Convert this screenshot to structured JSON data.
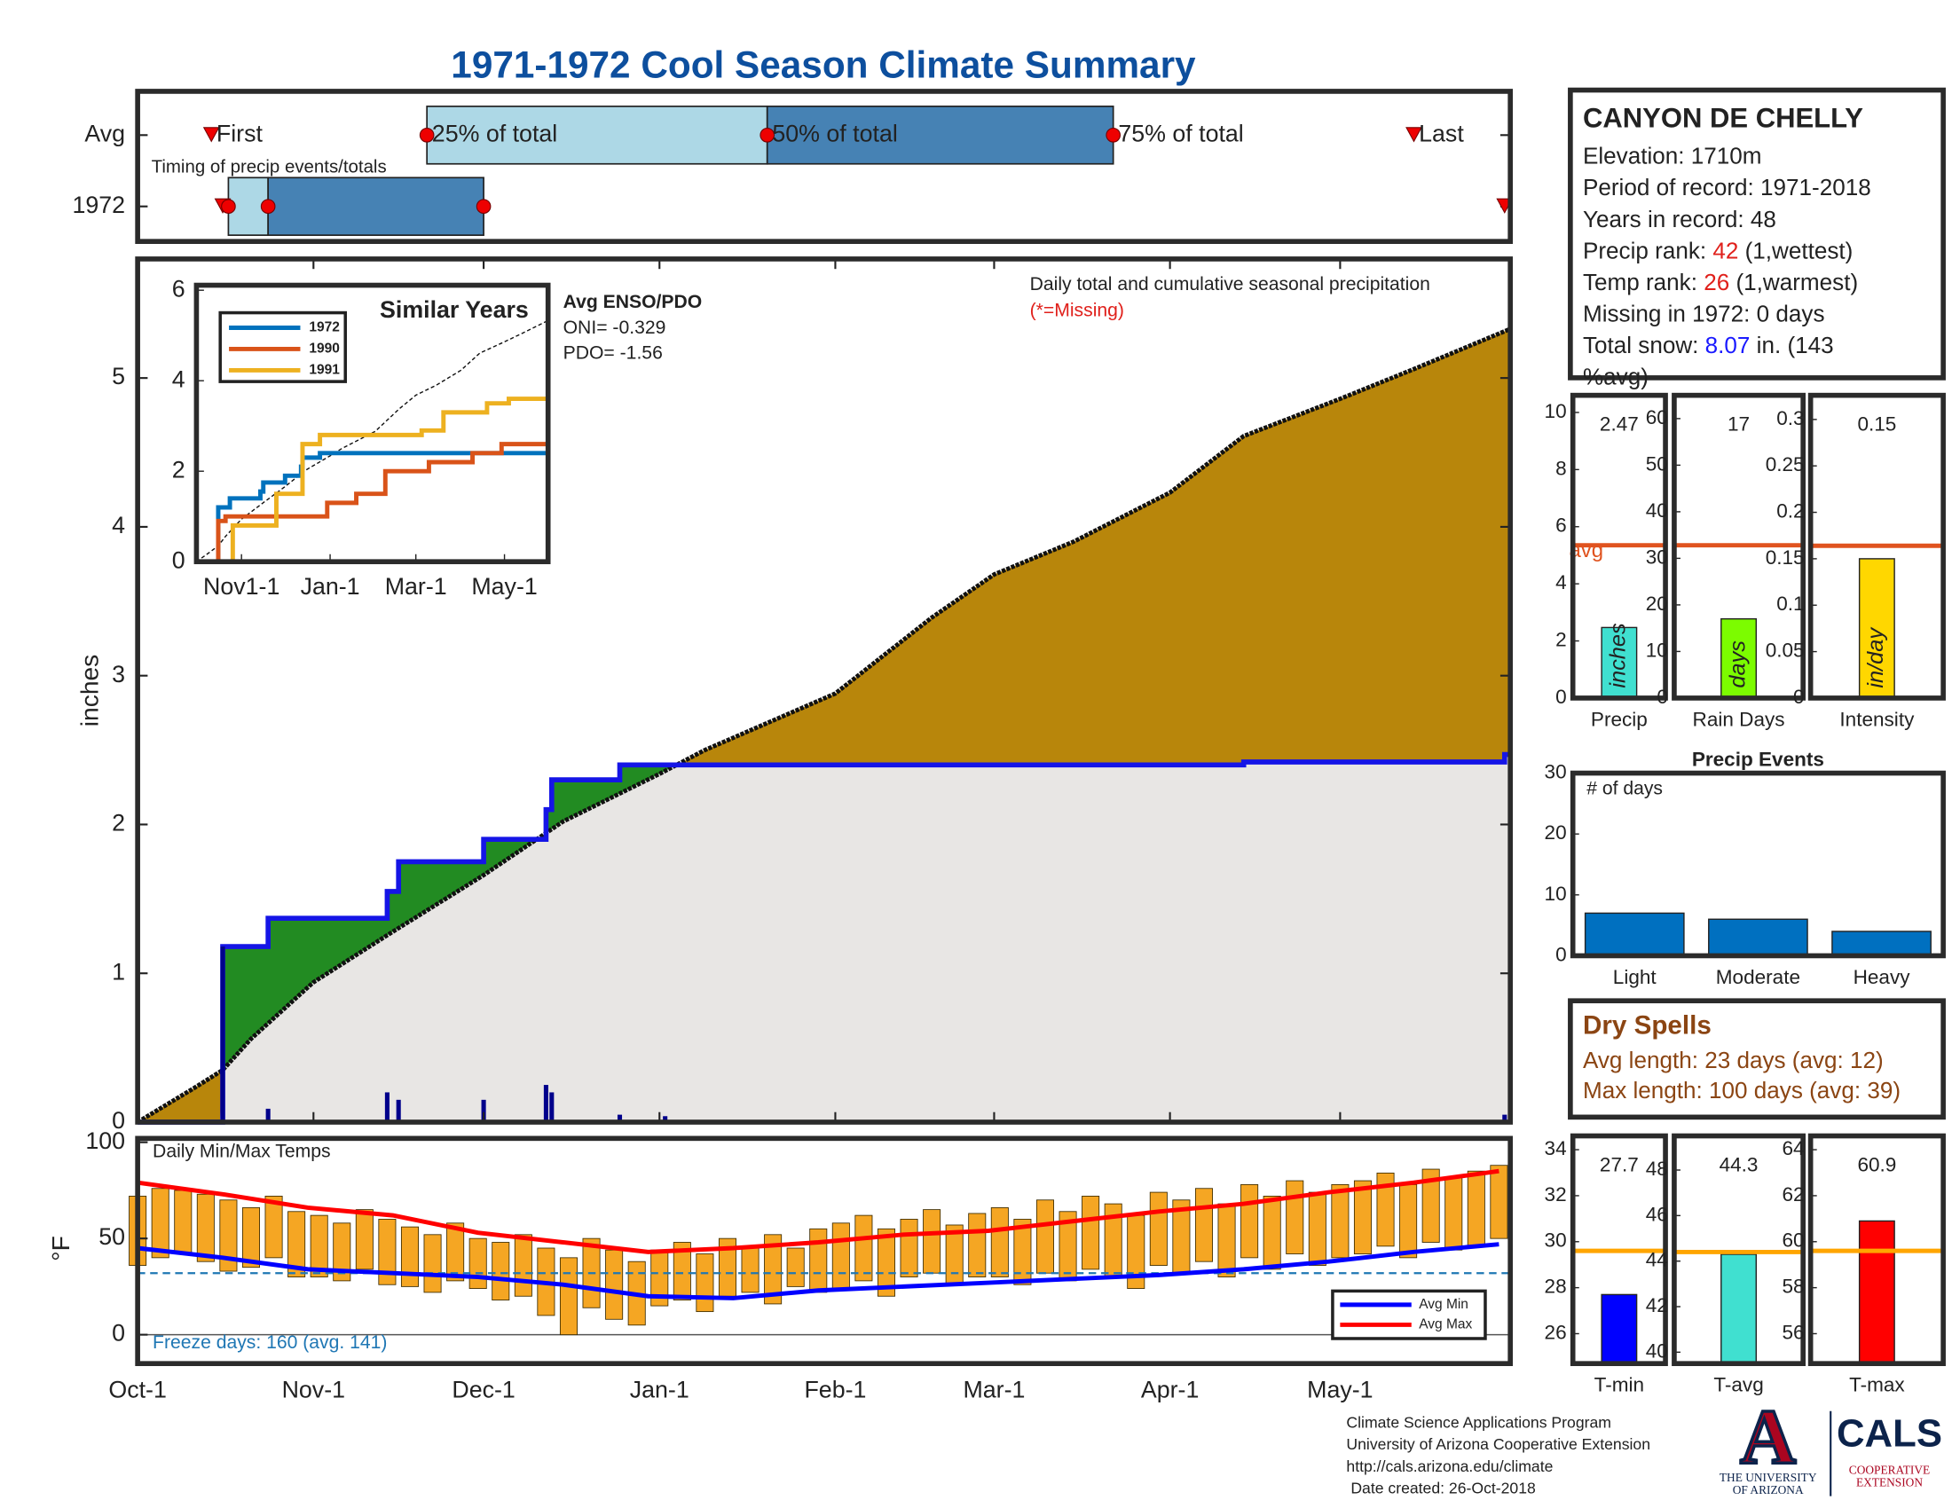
{
  "title": "1971-1972 Cool Season Climate Summary",
  "timing": {
    "note": "Timing of precip events/totals",
    "labels": [
      "First",
      "25% of total",
      "50% of total",
      "75% of total",
      "Last"
    ],
    "colors": [
      "#add8e6",
      "#4682b4"
    ],
    "series": [
      {
        "name": "Avg",
        "values": [
          13,
          51,
          111,
          172,
          225
        ]
      },
      {
        "name": "1972",
        "values": [
          15,
          16,
          23,
          61,
          241
        ]
      }
    ]
  },
  "station": {
    "name": "CANYON DE CHELLY",
    "lines": [
      [
        {
          "text": "Elevation: 1710m"
        }
      ],
      [
        {
          "text": "Period of record: 1971-2018"
        }
      ],
      [
        {
          "text": "Years in record: 48"
        }
      ],
      [
        {
          "text": "Precip rank: "
        },
        {
          "text": "42",
          "color": "#e0201b"
        },
        {
          "text": " (1,wettest)"
        }
      ],
      [
        {
          "text": "Temp rank: "
        },
        {
          "text": "26",
          "color": "#e0201b"
        },
        {
          "text": " (1,warmest)"
        }
      ],
      [
        {
          "text": "Missing in 1972: 0 days"
        }
      ],
      [
        {
          "text": "Total snow: "
        },
        {
          "text": "8.07",
          "color": "#1a1aff"
        },
        {
          "text": " in. (143"
        }
      ],
      [
        {
          "text": "%avg)"
        }
      ]
    ]
  },
  "dry_spells": {
    "title": "Dry Spells",
    "color": "#8b4513",
    "lines": [
      "Avg length: 23 days (avg: 12)",
      "Max length: 100 days (avg: 39)"
    ]
  },
  "footer": {
    "lines": [
      "Climate Science Applications Program",
      "University of Arizona Cooperative Extension",
      "http://cals.arizona.edu/climate",
      " Date created: 26-Oct-2018"
    ],
    "logo": {
      "letter": "A",
      "university": [
        "THE UNIVERSITY",
        "OF ARIZONA"
      ],
      "cals": "CALS",
      "extension": [
        "COOPERATIVE",
        "EXTENSION"
      ]
    }
  },
  "chart_data": [
    {
      "type": "area",
      "title": "Daily total and cumulative seasonal precipitation",
      "note": "(*=Missing)",
      "ylabel": "inches",
      "xlim": [
        0,
        242
      ],
      "xticks": [
        {
          "value": 0,
          "label": "Oct-1"
        },
        {
          "value": 31,
          "label": "Nov-1"
        },
        {
          "value": 61,
          "label": "Dec-1"
        },
        {
          "value": 92,
          "label": "Jan-1"
        },
        {
          "value": 123,
          "label": "Feb-1"
        },
        {
          "value": 151,
          "label": "Mar-1"
        },
        {
          "value": 182,
          "label": "Apr-1"
        },
        {
          "value": 212,
          "label": "May-1"
        }
      ],
      "ylim": [
        0,
        5.8
      ],
      "yticks": [
        0,
        1,
        2,
        3,
        4,
        5
      ],
      "avg": {
        "color": "#b8860b",
        "x": [
          0,
          10,
          15,
          20,
          31,
          45,
          61,
          75,
          92,
          100,
          123,
          140,
          151,
          165,
          182,
          195,
          212,
          225,
          242
        ],
        "values": [
          0,
          0.23,
          0.35,
          0.56,
          0.94,
          1.28,
          1.66,
          2.02,
          2.34,
          2.5,
          2.88,
          3.39,
          3.68,
          3.9,
          4.23,
          4.61,
          4.86,
          5.06,
          5.33
        ]
      },
      "year": {
        "color": "#1515e6",
        "x": [
          0,
          15,
          23,
          44,
          46,
          61,
          72,
          73,
          85,
          195,
          241,
          242
        ],
        "values": [
          0,
          1.18,
          1.37,
          1.55,
          1.75,
          1.9,
          2.1,
          2.3,
          2.4,
          2.42,
          2.47,
          2.47
        ]
      },
      "above_color": "#228b22",
      "below_color": "#e8e6e4",
      "daily": {
        "color": "#00008b",
        "x": [
          15,
          23,
          44,
          46,
          61,
          72,
          73,
          85,
          93,
          241
        ],
        "values": [
          1.18,
          0.09,
          0.2,
          0.15,
          0.15,
          0.25,
          0.2,
          0.05,
          0.04,
          0.05
        ]
      }
    },
    {
      "type": "line",
      "title": "Similar Years",
      "enso": [
        "Avg ENSO/PDO",
        "ONI= -0.329",
        "PDO= -1.56"
      ],
      "xlim": [
        0,
        242
      ],
      "xticks": [
        {
          "value": 31,
          "label": "Nov1-1"
        },
        {
          "value": 92,
          "label": "Jan-1"
        },
        {
          "value": 151,
          "label": "Mar-1"
        },
        {
          "value": 212,
          "label": "May-1"
        }
      ],
      "ylim": [
        0,
        6
      ],
      "yticks": [
        0,
        2,
        4,
        6
      ],
      "series": [
        {
          "name": "1972",
          "color": "#0072bd",
          "x": [
            0,
            15,
            23,
            44,
            46,
            61,
            72,
            73,
            85,
            242
          ],
          "values": [
            0,
            1.2,
            1.4,
            1.55,
            1.75,
            1.9,
            2.1,
            2.3,
            2.4,
            2.4
          ]
        },
        {
          "name": "1990",
          "color": "#d95319",
          "x": [
            0,
            15,
            20,
            90,
            110,
            130,
            160,
            190,
            210,
            242
          ],
          "values": [
            0,
            0.9,
            1.0,
            1.3,
            1.5,
            2.0,
            2.2,
            2.4,
            2.6,
            2.9
          ]
        },
        {
          "name": "1991",
          "color": "#edb120",
          "x": [
            0,
            25,
            55,
            73,
            85,
            155,
            170,
            200,
            215,
            242
          ],
          "values": [
            0,
            0.8,
            1.5,
            2.6,
            2.8,
            2.9,
            3.3,
            3.5,
            3.6,
            3.6
          ]
        }
      ]
    },
    {
      "type": "bar",
      "categories": [
        "Precip"
      ],
      "values": [
        2.47
      ],
      "color": "#40e0d0",
      "unit": "inches",
      "avg": 5.35,
      "avg_label": "avg",
      "avg_color": "#e0531f",
      "ylim": [
        0,
        10.6
      ],
      "yticks": [
        0,
        2,
        4,
        6,
        8,
        10
      ]
    },
    {
      "type": "bar",
      "categories": [
        "Rain Days"
      ],
      "values": [
        17
      ],
      "color": "#7cfc00",
      "unit": "days",
      "avg": 32.8,
      "avg_color": "#e0531f",
      "ylim": [
        0,
        65
      ],
      "yticks": [
        0,
        10,
        20,
        30,
        40,
        50,
        60
      ]
    },
    {
      "type": "bar",
      "categories": [
        "Intensity"
      ],
      "values": [
        0.15
      ],
      "color": "#ffd700",
      "unit": "in/day",
      "avg": 0.164,
      "avg_color": "#e0531f",
      "ylim": [
        0,
        0.326
      ],
      "yticks": [
        0,
        0.05,
        0.1,
        0.15,
        0.2,
        0.25,
        0.3
      ]
    },
    {
      "type": "bar",
      "title": "Precip Events",
      "ylabel": "# of days",
      "categories": [
        "Light",
        "Moderate",
        "Heavy"
      ],
      "values": [
        7,
        6,
        4
      ],
      "color": "#0070c0",
      "ylim": [
        0,
        30
      ],
      "yticks": [
        0,
        10,
        20,
        30
      ]
    },
    {
      "type": "range",
      "title": "Daily Min/Max Temps",
      "ylabel": "°F",
      "note": "Freeze days: 160 (avg. 141)",
      "color": "#f5a623",
      "freeze_line": 32,
      "freeze_color": "#1f77b4",
      "ylim": [
        -15,
        102
      ],
      "yticks": [
        0,
        50,
        100
      ],
      "x": [
        0,
        4,
        8,
        12,
        16,
        20,
        24,
        28,
        32,
        36,
        40,
        44,
        48,
        52,
        56,
        60,
        64,
        68,
        72,
        76,
        80,
        84,
        88,
        92,
        96,
        100,
        104,
        108,
        112,
        116,
        120,
        124,
        128,
        132,
        136,
        140,
        144,
        148,
        152,
        156,
        160,
        164,
        168,
        172,
        176,
        180,
        184,
        188,
        192,
        196,
        200,
        204,
        208,
        212,
        216,
        220,
        224,
        228,
        232,
        236,
        240
      ],
      "max": [
        72,
        76,
        75,
        73,
        70,
        66,
        72,
        64,
        62,
        58,
        65,
        60,
        56,
        52,
        58,
        50,
        48,
        52,
        45,
        40,
        50,
        44,
        38,
        44,
        48,
        42,
        50,
        46,
        52,
        45,
        55,
        58,
        62,
        55,
        60,
        65,
        57,
        63,
        66,
        60,
        70,
        64,
        72,
        68,
        62,
        74,
        70,
        76,
        68,
        78,
        72,
        80,
        74,
        78,
        80,
        84,
        78,
        86,
        82,
        85,
        88
      ],
      "min": [
        36,
        40,
        42,
        38,
        33,
        35,
        40,
        30,
        30,
        28,
        34,
        26,
        25,
        22,
        28,
        24,
        18,
        20,
        10,
        0,
        14,
        8,
        5,
        15,
        18,
        12,
        20,
        22,
        16,
        25,
        22,
        24,
        28,
        20,
        30,
        32,
        26,
        30,
        30,
        26,
        32,
        28,
        34,
        30,
        24,
        36,
        32,
        38,
        30,
        40,
        34,
        42,
        36,
        40,
        42,
        46,
        40,
        48,
        44,
        46,
        50
      ],
      "series": [
        {
          "name": "Avg Min",
          "color": "#0000ff",
          "x": [
            0,
            15,
            30,
            45,
            60,
            75,
            90,
            105,
            120,
            135,
            150,
            165,
            180,
            195,
            210,
            225,
            240
          ],
          "values": [
            45,
            40,
            34,
            32,
            30,
            26,
            20,
            19,
            23,
            25,
            27,
            29,
            31,
            34,
            38,
            43,
            47
          ]
        },
        {
          "name": "Avg Max",
          "color": "#ff0000",
          "x": [
            0,
            15,
            30,
            45,
            60,
            75,
            90,
            105,
            120,
            135,
            150,
            165,
            180,
            195,
            210,
            225,
            240
          ],
          "values": [
            79,
            73,
            66,
            62,
            53,
            48,
            43,
            45,
            48,
            52,
            54,
            59,
            64,
            68,
            74,
            79,
            85
          ]
        }
      ]
    },
    {
      "type": "bar",
      "categories": [
        "T-min"
      ],
      "values": [
        27.7
      ],
      "color": "#0000ff",
      "avg": 29.6,
      "avg_color": "#ffa500",
      "ylim": [
        24.7,
        34.6
      ],
      "yticks": [
        26,
        28,
        30,
        32,
        34
      ]
    },
    {
      "type": "bar",
      "categories": [
        "T-avg"
      ],
      "values": [
        44.3
      ],
      "color": "#40e0d0",
      "avg": 44.4,
      "avg_color": "#ffa500",
      "ylim": [
        39.5,
        49.5
      ],
      "yticks": [
        40,
        42,
        44,
        46,
        48
      ]
    },
    {
      "type": "bar",
      "categories": [
        "T-max"
      ],
      "values": [
        60.9
      ],
      "color": "#ff0000",
      "avg": 59.6,
      "avg_color": "#ffa500",
      "ylim": [
        54.7,
        64.6
      ],
      "yticks": [
        56,
        58,
        60,
        62,
        64
      ]
    }
  ]
}
